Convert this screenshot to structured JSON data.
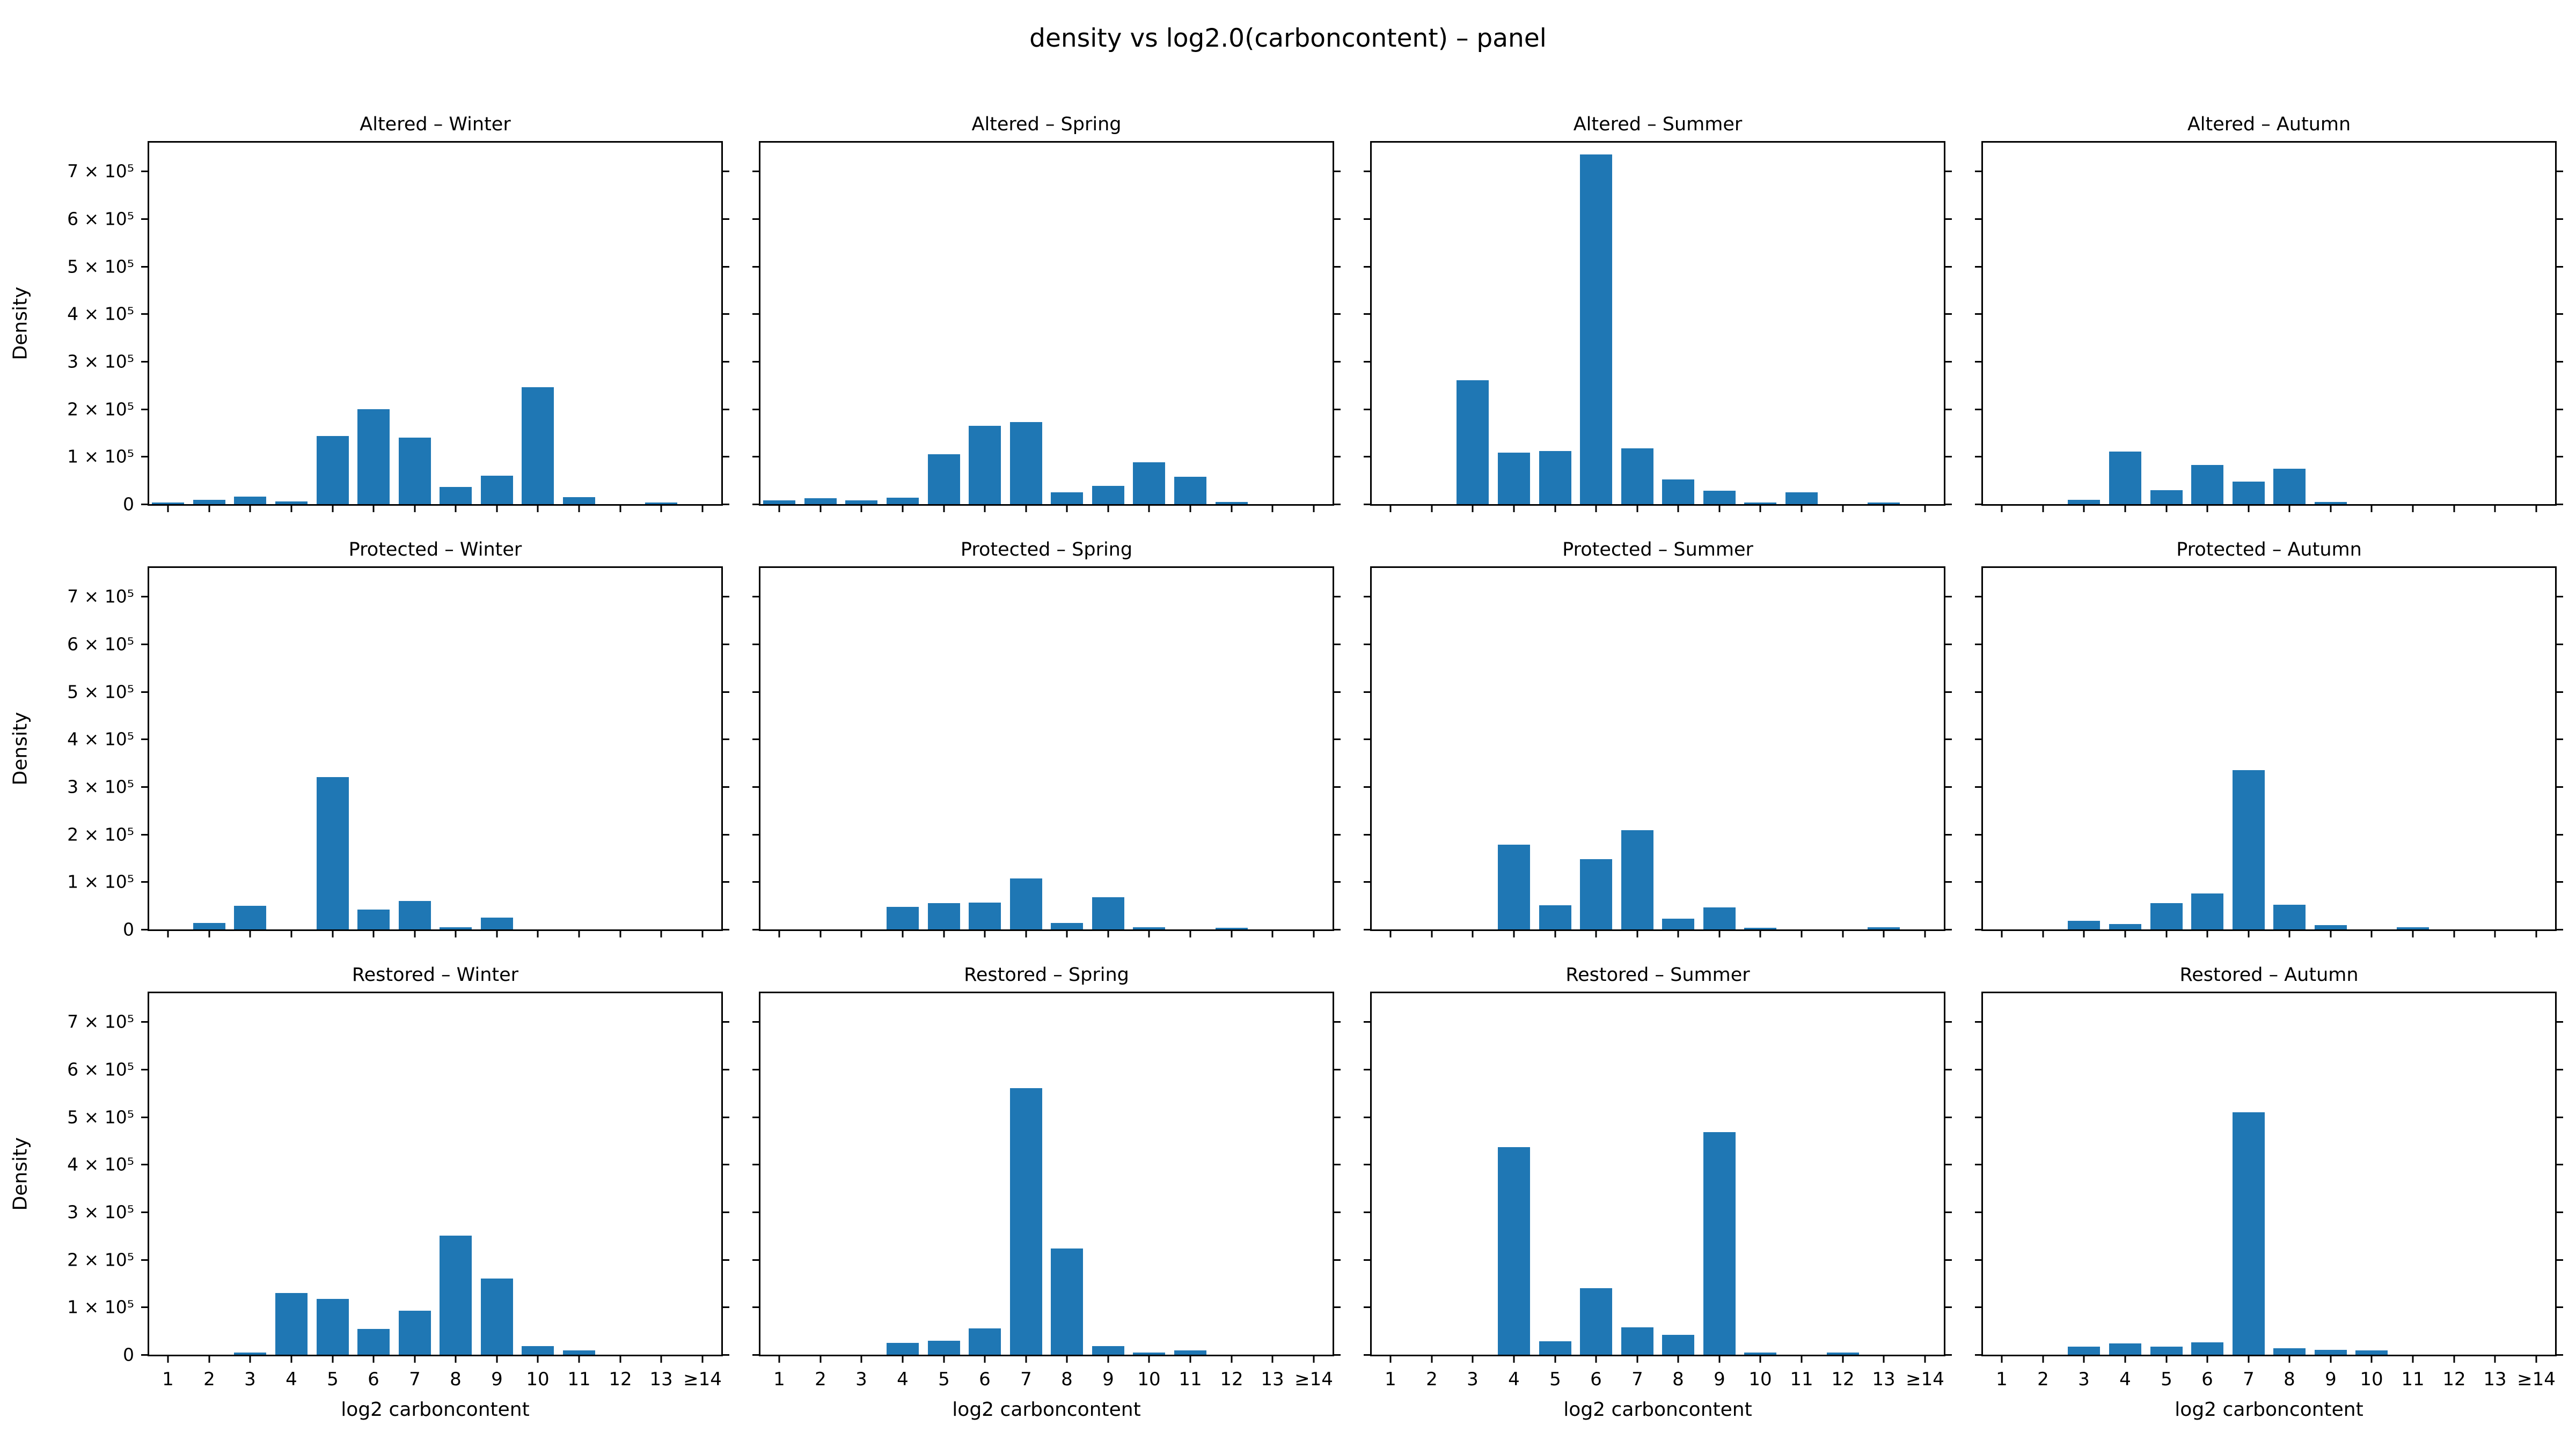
{
  "figure": {
    "suptitle": "density vs log2.0(carboncontent) – panel",
    "background_color": "#ffffff",
    "bar_color": "#1f77b4",
    "text_color": "#000000"
  },
  "chart_data": {
    "type": "bar",
    "title": "density vs log2.0(carboncontent) – panel",
    "xlabel": "log2 carboncontent",
    "ylabel": "Density",
    "grid": false,
    "legend": null,
    "layout": "3 rows (Altered, Protected, Restored) x 4 columns (Winter, Spring, Summer, Autumn); shared axes; y tick labels only on first column; x tick labels only on bottom row",
    "categories": [
      "1",
      "2",
      "3",
      "4",
      "5",
      "6",
      "7",
      "8",
      "9",
      "10",
      "11",
      "12",
      "13",
      "≥14"
    ],
    "x_tick_labels": [
      "1",
      "2",
      "3",
      "4",
      "5",
      "6",
      "7",
      "8",
      "9",
      "10",
      "11",
      "12",
      "13",
      "≥14"
    ],
    "y_tick_values": [
      0,
      100000,
      200000,
      300000,
      400000,
      500000,
      600000,
      700000
    ],
    "y_tick_labels": [
      "0",
      "1 × 10⁵",
      "2 × 10⁵",
      "3 × 10⁵",
      "4 × 10⁵",
      "5 × 10⁵",
      "6 × 10⁵",
      "7 × 10⁵"
    ],
    "ylim": [
      0,
      760000
    ],
    "rows": [
      "Altered",
      "Protected",
      "Restored"
    ],
    "cols": [
      "Winter",
      "Spring",
      "Summer",
      "Autumn"
    ],
    "panels": [
      {
        "row": "Altered",
        "col": "Winter",
        "title": "Altered – Winter",
        "values": [
          3000,
          9000,
          16000,
          6000,
          143000,
          200000,
          140000,
          36000,
          60000,
          246000,
          15000,
          0,
          2000,
          0
        ]
      },
      {
        "row": "Altered",
        "col": "Spring",
        "title": "Altered – Spring",
        "values": [
          8000,
          12000,
          8000,
          14000,
          105000,
          165000,
          172000,
          25000,
          38000,
          88000,
          57000,
          5000,
          0,
          0
        ]
      },
      {
        "row": "Altered",
        "col": "Summer",
        "title": "Altered – Summer",
        "values": [
          0,
          0,
          260000,
          108000,
          112000,
          735000,
          117000,
          52000,
          28000,
          3000,
          25000,
          0,
          3000,
          0
        ]
      },
      {
        "row": "Altered",
        "col": "Autumn",
        "title": "Altered – Autumn",
        "values": [
          0,
          0,
          9000,
          110000,
          29000,
          82000,
          47000,
          74000,
          4000,
          0,
          0,
          0,
          0,
          0
        ]
      },
      {
        "row": "Protected",
        "col": "Winter",
        "title": "Protected – Winter",
        "values": [
          0,
          13000,
          50000,
          0,
          320000,
          42000,
          60000,
          5000,
          25000,
          0,
          0,
          0,
          0,
          0
        ]
      },
      {
        "row": "Protected",
        "col": "Spring",
        "title": "Protected – Spring",
        "values": [
          0,
          0,
          0,
          47000,
          55000,
          56000,
          107000,
          14000,
          68000,
          5000,
          0,
          3000,
          0,
          0
        ]
      },
      {
        "row": "Protected",
        "col": "Summer",
        "title": "Protected – Summer",
        "values": [
          0,
          0,
          0,
          178000,
          51000,
          148000,
          209000,
          22000,
          46000,
          2000,
          0,
          0,
          4000,
          0
        ]
      },
      {
        "row": "Protected",
        "col": "Autumn",
        "title": "Protected – Autumn",
        "values": [
          0,
          0,
          18000,
          11000,
          55000,
          75000,
          335000,
          52000,
          9000,
          0,
          4000,
          0,
          0,
          0
        ]
      },
      {
        "row": "Restored",
        "col": "Winter",
        "title": "Restored – Winter",
        "values": [
          0,
          0,
          5000,
          130000,
          117000,
          54000,
          92000,
          250000,
          160000,
          18000,
          9000,
          0,
          0,
          0
        ]
      },
      {
        "row": "Restored",
        "col": "Spring",
        "title": "Restored – Spring",
        "values": [
          0,
          0,
          0,
          25000,
          29000,
          55000,
          560000,
          223000,
          18000,
          5000,
          9000,
          0,
          0,
          0
        ]
      },
      {
        "row": "Restored",
        "col": "Summer",
        "title": "Restored – Summer",
        "values": [
          0,
          0,
          0,
          436000,
          28000,
          140000,
          58000,
          42000,
          468000,
          4000,
          0,
          4000,
          0,
          0
        ]
      },
      {
        "row": "Restored",
        "col": "Autumn",
        "title": "Restored – Autumn",
        "values": [
          0,
          0,
          17000,
          24000,
          17000,
          26000,
          510000,
          13000,
          10000,
          9000,
          0,
          0,
          0,
          0
        ]
      }
    ]
  }
}
